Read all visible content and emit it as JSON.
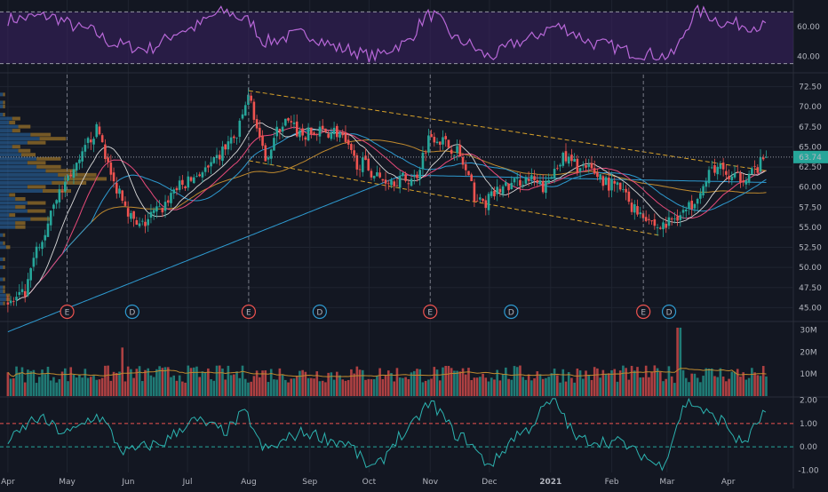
{
  "chart_data": {
    "type": "candlestick",
    "title": "",
    "colors": {
      "background": "#131722",
      "grid": "#1f2430",
      "up": "#26a69a",
      "down": "#ef5350",
      "rsi_line": "#b868d8",
      "rsi_band": "#3b2163",
      "ma_short": "#e84a7a",
      "ma_mid": "#d8d8d8",
      "ma_long": "#c08a2e",
      "ma_200": "#2e9ad0",
      "channel": "#d7a12a",
      "osc_line": "#2cb3b0",
      "earnings_marker": "#ef5350",
      "dividend_marker": "#2e9ad0",
      "price_tag": "#26a69a"
    },
    "x_axis": {
      "ticks": [
        "Apr",
        "May",
        "Jun",
        "Jul",
        "Aug",
        "Sep",
        "Oct",
        "Nov",
        "Dec",
        "2021",
        "Feb",
        "Mar",
        "Apr"
      ],
      "tick_days": [
        0,
        30,
        61,
        91,
        122,
        153,
        183,
        214,
        244,
        275,
        306,
        334,
        365
      ],
      "range_days": [
        -4,
        398
      ]
    },
    "price_panel": {
      "yticks": [
        "45.00",
        "47.50",
        "50.00",
        "52.50",
        "55.00",
        "57.50",
        "60.00",
        "62.50",
        "65.00",
        "67.50",
        "70.00",
        "72.50"
      ],
      "ylim": [
        43.5,
        74
      ],
      "last_price": "63.74",
      "last_value": 63.74,
      "ohlc_anchors": [
        {
          "day": 0,
          "close": 45.5
        },
        {
          "day": 8,
          "close": 46.5
        },
        {
          "day": 15,
          "close": 52.0
        },
        {
          "day": 25,
          "close": 59.0
        },
        {
          "day": 33,
          "close": 62.0
        },
        {
          "day": 45,
          "close": 67.0
        },
        {
          "day": 55,
          "close": 60.0
        },
        {
          "day": 66,
          "close": 55.0
        },
        {
          "day": 76,
          "close": 57.0
        },
        {
          "day": 86,
          "close": 60.0
        },
        {
          "day": 100,
          "close": 62.0
        },
        {
          "day": 115,
          "close": 66.0
        },
        {
          "day": 122,
          "close": 71.0
        },
        {
          "day": 130,
          "close": 64.0
        },
        {
          "day": 140,
          "close": 68.0
        },
        {
          "day": 150,
          "close": 66.5
        },
        {
          "day": 165,
          "close": 67.0
        },
        {
          "day": 178,
          "close": 63.0
        },
        {
          "day": 190,
          "close": 61.0
        },
        {
          "day": 205,
          "close": 61.0
        },
        {
          "day": 215,
          "close": 66.5
        },
        {
          "day": 225,
          "close": 65.0
        },
        {
          "day": 240,
          "close": 58.0
        },
        {
          "day": 252,
          "close": 60.0
        },
        {
          "day": 262,
          "close": 61.0
        },
        {
          "day": 272,
          "close": 60.0
        },
        {
          "day": 280,
          "close": 63.5
        },
        {
          "day": 295,
          "close": 62.0
        },
        {
          "day": 308,
          "close": 60.0
        },
        {
          "day": 320,
          "close": 57.0
        },
        {
          "day": 330,
          "close": 55.0
        },
        {
          "day": 343,
          "close": 57.0
        },
        {
          "day": 352,
          "close": 60.0
        },
        {
          "day": 358,
          "close": 62.5
        },
        {
          "day": 368,
          "close": 61.0
        },
        {
          "day": 378,
          "close": 62.0
        },
        {
          "day": 385,
          "close": 63.74
        }
      ],
      "channel_upper": [
        [
          122,
          72.0
        ],
        [
          385,
          62.0
        ]
      ],
      "channel_lower": [
        [
          122,
          63.3
        ],
        [
          330,
          54.0
        ]
      ],
      "event_markers": [
        {
          "type": "E",
          "day": 30
        },
        {
          "type": "D",
          "day": 63
        },
        {
          "type": "E",
          "day": 122
        },
        {
          "type": "D",
          "day": 158
        },
        {
          "type": "E",
          "day": 214
        },
        {
          "type": "D",
          "day": 255
        },
        {
          "type": "E",
          "day": 322
        },
        {
          "type": "D",
          "day": 335
        }
      ],
      "event_guides_days": [
        30,
        122,
        214,
        322
      ]
    },
    "rsi_panel": {
      "yticks": [
        "40.00",
        "60.00"
      ],
      "ylim": [
        30,
        78
      ],
      "band": [
        35,
        70
      ],
      "anchors": [
        {
          "day": 0,
          "v": 65
        },
        {
          "day": 20,
          "v": 67
        },
        {
          "day": 40,
          "v": 58
        },
        {
          "day": 55,
          "v": 48
        },
        {
          "day": 70,
          "v": 45
        },
        {
          "day": 90,
          "v": 58
        },
        {
          "day": 110,
          "v": 70
        },
        {
          "day": 122,
          "v": 64
        },
        {
          "day": 130,
          "v": 50
        },
        {
          "day": 150,
          "v": 55
        },
        {
          "day": 170,
          "v": 45
        },
        {
          "day": 185,
          "v": 40
        },
        {
          "day": 200,
          "v": 48
        },
        {
          "day": 214,
          "v": 68
        },
        {
          "day": 230,
          "v": 50
        },
        {
          "day": 244,
          "v": 40
        },
        {
          "day": 260,
          "v": 50
        },
        {
          "day": 278,
          "v": 60
        },
        {
          "day": 300,
          "v": 48
        },
        {
          "day": 320,
          "v": 42
        },
        {
          "day": 335,
          "v": 40
        },
        {
          "day": 350,
          "v": 70
        },
        {
          "day": 365,
          "v": 62
        },
        {
          "day": 385,
          "v": 60
        }
      ]
    },
    "volume_panel": {
      "yticks": [
        "10M",
        "20M",
        "30M"
      ],
      "ylim": [
        0,
        33
      ],
      "units": "M",
      "spikes": [
        {
          "day": 58,
          "value": 22
        },
        {
          "day": 340,
          "value": 31
        }
      ]
    },
    "oscillator_panel": {
      "yticks": [
        "-1.00",
        "0.00",
        "1.00",
        "2.00"
      ],
      "ylim": [
        -1.1,
        2.1
      ],
      "levels": [
        0,
        1
      ],
      "anchors": [
        {
          "day": 0,
          "v": 0.3
        },
        {
          "day": 15,
          "v": 1.2
        },
        {
          "day": 30,
          "v": 0.6
        },
        {
          "day": 45,
          "v": 1.3
        },
        {
          "day": 60,
          "v": -0.2
        },
        {
          "day": 75,
          "v": 0.1
        },
        {
          "day": 95,
          "v": 1.1
        },
        {
          "day": 110,
          "v": 0.7
        },
        {
          "day": 120,
          "v": 1.4
        },
        {
          "day": 130,
          "v": -0.1
        },
        {
          "day": 150,
          "v": 0.6
        },
        {
          "day": 170,
          "v": 0.2
        },
        {
          "day": 185,
          "v": -0.9
        },
        {
          "day": 200,
          "v": 0.5
        },
        {
          "day": 214,
          "v": 1.8
        },
        {
          "day": 230,
          "v": 0.4
        },
        {
          "day": 244,
          "v": -0.7
        },
        {
          "day": 260,
          "v": 0.6
        },
        {
          "day": 276,
          "v": 1.9
        },
        {
          "day": 290,
          "v": 0.3
        },
        {
          "day": 310,
          "v": 0.2
        },
        {
          "day": 320,
          "v": -0.3
        },
        {
          "day": 330,
          "v": -0.8
        },
        {
          "day": 345,
          "v": 1.9
        },
        {
          "day": 360,
          "v": 1.2
        },
        {
          "day": 372,
          "v": 0.2
        },
        {
          "day": 385,
          "v": 1.5
        }
      ]
    }
  }
}
